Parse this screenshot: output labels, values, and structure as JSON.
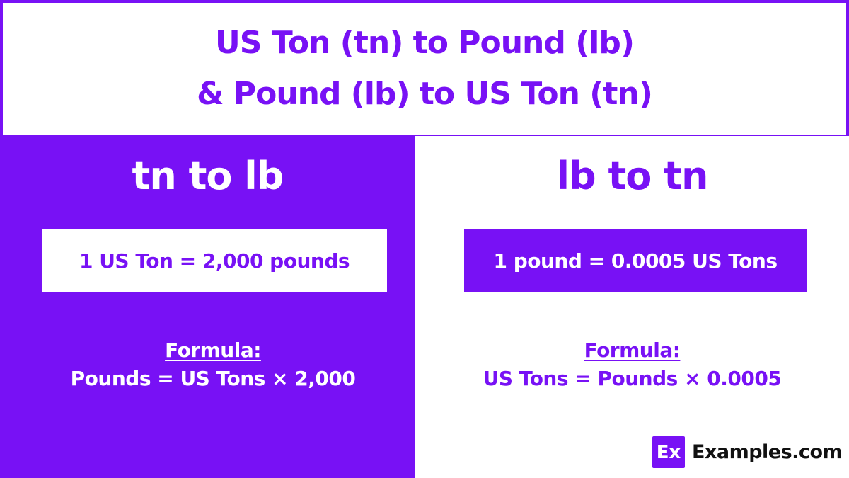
{
  "title": {
    "line1": "US Ton (tn) to Pound (lb)",
    "line2": "& Pound (lb) to US Ton (tn)"
  },
  "left_panel": {
    "heading": "tn to lb",
    "conversion": "1 US Ton = 2,000 pounds",
    "formula_label": "Formula:",
    "formula": "Pounds = US Tons × 2,000"
  },
  "right_panel": {
    "heading": "lb to tn",
    "conversion": "1 pound = 0.0005 US Tons",
    "formula_label": "Formula:",
    "formula": "US Tons = Pounds × 0.0005"
  },
  "logo": {
    "badge": "Ex",
    "text": "Examples.com"
  },
  "colors": {
    "accent": "#7811f5",
    "background": "#ffffff"
  }
}
